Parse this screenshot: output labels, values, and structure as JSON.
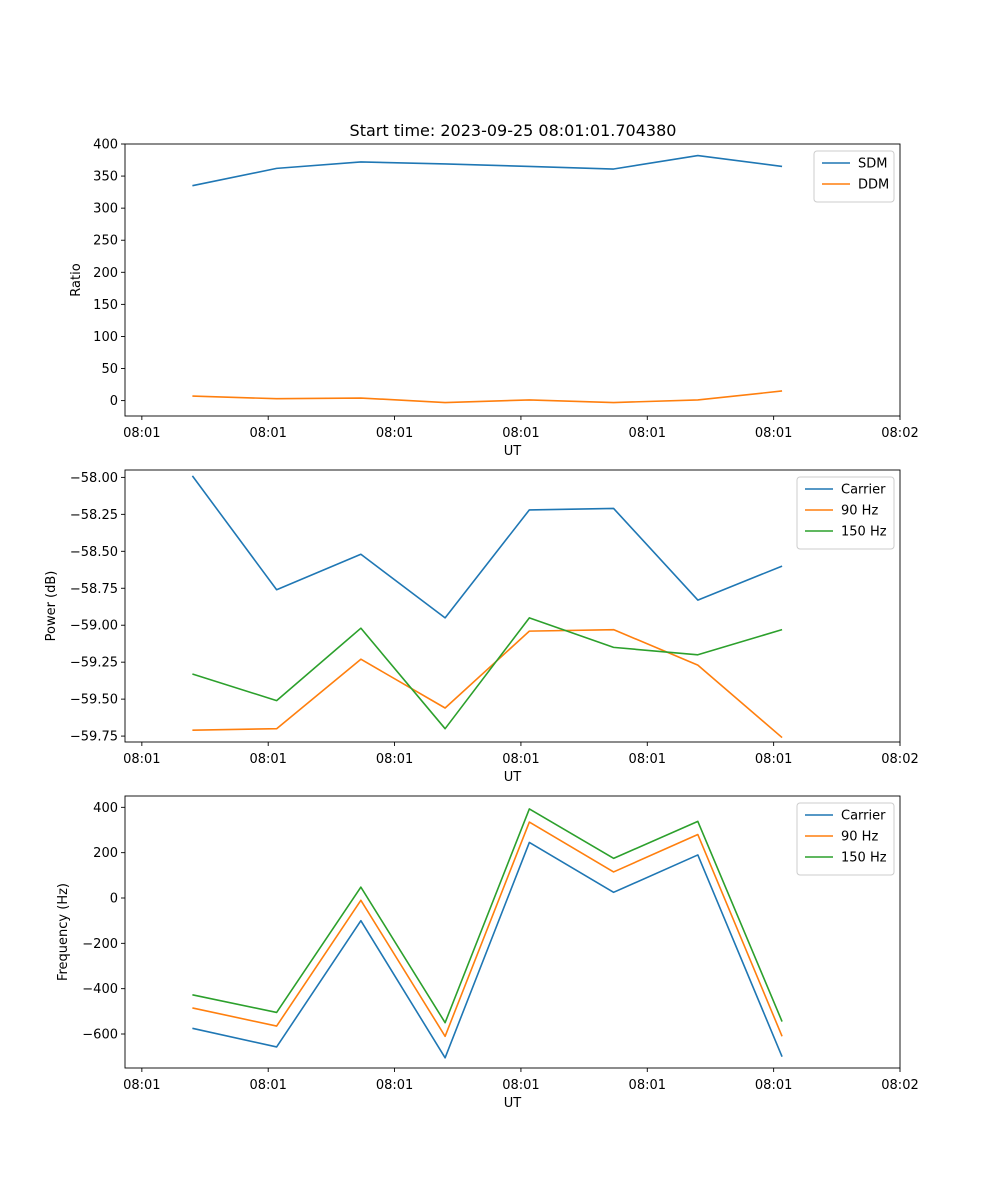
{
  "figure": {
    "title": "Start time: 2023-09-25 08:01:01.704380"
  },
  "chart_data": [
    {
      "type": "line",
      "title": "Start time: 2023-09-25 08:01:01.704380",
      "xlabel": "UT",
      "ylabel": "Ratio",
      "x": [
        1,
        2,
        3,
        4,
        5,
        6,
        7,
        8
      ],
      "xlim": [
        0.2,
        9.4
      ],
      "x_ticks": [
        0.4,
        1.9,
        3.4,
        4.9,
        6.4,
        7.9,
        9.4
      ],
      "x_tick_labels": [
        "08:01",
        "08:01",
        "08:01",
        "08:01",
        "08:01",
        "08:01",
        "08:02"
      ],
      "ylim": [
        -24,
        400
      ],
      "y_ticks": [
        0,
        50,
        100,
        150,
        200,
        250,
        300,
        350,
        400
      ],
      "y_tick_labels": [
        "0",
        "50",
        "100",
        "150",
        "200",
        "250",
        "300",
        "350",
        "400"
      ],
      "legend_position": "top-right",
      "series": [
        {
          "name": "SDM",
          "color": "#1f77b4",
          "values": [
            335,
            362,
            372,
            369,
            365,
            361,
            382,
            365
          ]
        },
        {
          "name": "DDM",
          "color": "#ff7f0e",
          "values": [
            7,
            3,
            4,
            -3,
            1,
            -3,
            1,
            15
          ]
        }
      ]
    },
    {
      "type": "line",
      "xlabel": "UT",
      "ylabel": "Power (dB)",
      "x": [
        1,
        2,
        3,
        4,
        5,
        6,
        7,
        8
      ],
      "xlim": [
        0.2,
        9.4
      ],
      "x_ticks": [
        0.4,
        1.9,
        3.4,
        4.9,
        6.4,
        7.9,
        9.4
      ],
      "x_tick_labels": [
        "08:01",
        "08:01",
        "08:01",
        "08:01",
        "08:01",
        "08:01",
        "08:02"
      ],
      "ylim": [
        -59.79,
        -57.95
      ],
      "y_ticks": [
        -59.75,
        -59.5,
        -59.25,
        -59.0,
        -58.75,
        -58.5,
        -58.25,
        -58.0
      ],
      "y_tick_labels": [
        "−59.75",
        "−59.50",
        "−59.25",
        "−59.00",
        "−58.75",
        "−58.50",
        "−58.25",
        "−58.00"
      ],
      "legend_position": "top-right",
      "series": [
        {
          "name": "Carrier",
          "color": "#1f77b4",
          "values": [
            -57.99,
            -58.76,
            -58.52,
            -58.95,
            -58.22,
            -58.21,
            -58.83,
            -58.6
          ]
        },
        {
          "name": "90 Hz",
          "color": "#ff7f0e",
          "values": [
            -59.71,
            -59.7,
            -59.23,
            -59.56,
            -59.04,
            -59.03,
            -59.27,
            -59.76
          ]
        },
        {
          "name": "150 Hz",
          "color": "#2ca02c",
          "values": [
            -59.33,
            -59.51,
            -59.02,
            -59.7,
            -58.95,
            -59.15,
            -59.2,
            -59.03
          ]
        }
      ]
    },
    {
      "type": "line",
      "xlabel": "UT",
      "ylabel": "Frequency (Hz)",
      "x": [
        1,
        2,
        3,
        4,
        5,
        6,
        7,
        8
      ],
      "xlim": [
        0.2,
        9.4
      ],
      "x_ticks": [
        0.4,
        1.9,
        3.4,
        4.9,
        6.4,
        7.9,
        9.4
      ],
      "x_tick_labels": [
        "08:01",
        "08:01",
        "08:01",
        "08:01",
        "08:01",
        "08:01",
        "08:02"
      ],
      "ylim": [
        -750,
        450
      ],
      "y_ticks": [
        -600,
        -400,
        -200,
        0,
        200,
        400
      ],
      "y_tick_labels": [
        "−600",
        "−400",
        "−200",
        "0",
        "200",
        "400"
      ],
      "legend_position": "top-right",
      "series": [
        {
          "name": "Carrier",
          "color": "#1f77b4",
          "values": [
            -575,
            -657,
            -100,
            -705,
            245,
            25,
            190,
            -700
          ]
        },
        {
          "name": "90 Hz",
          "color": "#ff7f0e",
          "values": [
            -485,
            -565,
            -10,
            -610,
            335,
            115,
            280,
            -610
          ]
        },
        {
          "name": "150 Hz",
          "color": "#2ca02c",
          "values": [
            -427,
            -505,
            48,
            -550,
            393,
            175,
            338,
            -545
          ]
        }
      ]
    }
  ]
}
